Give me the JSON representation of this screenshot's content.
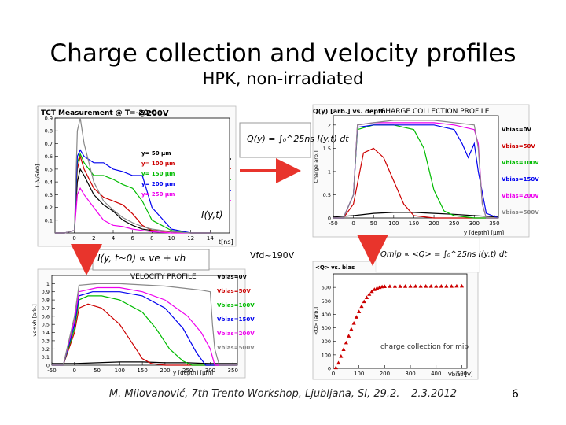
{
  "slide": {
    "title": "Charge collection and velocity profiles",
    "subtitle": "HPK, non-irradiated",
    "footer": "M. Milovanović, 7th Trento Workshop, Ljubljana, SI, 29.2. – 2.3.2012",
    "page_number": "6",
    "vfd_label": "Vfd~190V"
  },
  "colors": {
    "c0": "#000000",
    "c50": "#cc0000",
    "c100": "#00bb00",
    "c150": "#0000ee",
    "c200": "#ee00ee",
    "c250": "#888888",
    "arrow": "#e8342c"
  },
  "chart_data": [
    {
      "id": "tct",
      "type": "line",
      "title": "TCT Measurement @ T=-20 C",
      "annotation": "@200V",
      "xlabel": "t[ns]",
      "ylabel": "I [V/50Ω]",
      "xlim": [
        -2,
        16
      ],
      "ylim": [
        0,
        0.9
      ],
      "xticks": [
        0,
        2,
        4,
        6,
        8,
        10,
        12,
        14
      ],
      "yticks": [
        0.1,
        0.2,
        0.3,
        0.4,
        0.5,
        0.6,
        0.7,
        0.8,
        0.9
      ],
      "formula": "Q(y) = ∫₀^25ns I(y,t) dt",
      "formula2": "I(y,t)",
      "series": [
        {
          "name": "y= 50 μm",
          "color": "#000000",
          "x": [
            -2,
            -1,
            0,
            0.3,
            0.6,
            1,
            2,
            3,
            4,
            5,
            6,
            7,
            8,
            10,
            12,
            14
          ],
          "y": [
            0,
            0,
            0.02,
            0.4,
            0.5,
            0.45,
            0.3,
            0.22,
            0.17,
            0.1,
            0.06,
            0.03,
            0.02,
            0.01,
            0,
            0
          ]
        },
        {
          "name": "y= 100 μm",
          "color": "#cc0000",
          "x": [
            -2,
            -1,
            0,
            0.3,
            0.6,
            1,
            2,
            3,
            4,
            5,
            6,
            7,
            8,
            10,
            12,
            14
          ],
          "y": [
            0,
            0,
            0.02,
            0.5,
            0.6,
            0.5,
            0.35,
            0.28,
            0.25,
            0.22,
            0.15,
            0.06,
            0.02,
            0.01,
            0,
            0
          ]
        },
        {
          "name": "y= 150 μm",
          "color": "#00bb00",
          "x": [
            -2,
            -1,
            0,
            0.3,
            0.6,
            1,
            2,
            3,
            4,
            5,
            6,
            7,
            8,
            10,
            12,
            14
          ],
          "y": [
            0,
            0,
            0.02,
            0.55,
            0.62,
            0.55,
            0.45,
            0.45,
            0.42,
            0.38,
            0.35,
            0.25,
            0.1,
            0.02,
            0,
            0
          ]
        },
        {
          "name": "y= 200 μm",
          "color": "#0000ee",
          "x": [
            -2,
            -1,
            0,
            0.3,
            0.6,
            1,
            2,
            3,
            4,
            5,
            6,
            7,
            8,
            10,
            12,
            14
          ],
          "y": [
            0,
            0,
            0.02,
            0.6,
            0.65,
            0.6,
            0.55,
            0.55,
            0.5,
            0.48,
            0.45,
            0.45,
            0.2,
            0.03,
            0,
            0
          ]
        },
        {
          "name": "y= 250 μm",
          "color": "#ee00ee",
          "x": [
            -2,
            -1,
            0,
            0.3,
            0.6,
            1,
            2,
            3,
            4,
            5,
            6,
            7,
            8,
            10,
            12,
            14
          ],
          "y": [
            0,
            0,
            0.02,
            0.3,
            0.35,
            0.3,
            0.2,
            0.1,
            0.06,
            0.05,
            0.03,
            0.02,
            0.01,
            0,
            0,
            0
          ]
        },
        {
          "name": "",
          "color": "#888888",
          "x": [
            -2,
            -1,
            0,
            0.3,
            0.6,
            1,
            2,
            3,
            4,
            5,
            6,
            7,
            8,
            10,
            12,
            14
          ],
          "y": [
            0,
            0,
            0.02,
            0.8,
            0.9,
            0.7,
            0.4,
            0.25,
            0.18,
            0.12,
            0.08,
            0.05,
            0.03,
            0.01,
            0,
            0
          ]
        }
      ]
    },
    {
      "id": "ccp",
      "type": "line",
      "title": "Q(y) [arb.] vs. depth",
      "annotation": "CHARGE COLLECTION PROFILE",
      "xlabel": "y [depth] [μm]",
      "ylabel": "Charge[arb.]",
      "xlim": [
        -50,
        360
      ],
      "ylim": [
        0,
        2.2
      ],
      "xticks": [
        -50,
        0,
        50,
        100,
        150,
        200,
        250,
        300,
        350
      ],
      "yticks": [
        0,
        0.5,
        1,
        1.5,
        2
      ],
      "series": [
        {
          "name": "Vbias=0V",
          "color": "#000000",
          "x": [
            -50,
            0,
            50,
            100,
            150,
            200,
            250,
            300,
            360
          ],
          "y": [
            0.02,
            0.05,
            0.1,
            0.12,
            0.12,
            0.1,
            0.08,
            0.05,
            0.02
          ]
        },
        {
          "name": "Vbias=50V",
          "color": "#cc0000",
          "x": [
            -50,
            -25,
            0,
            25,
            50,
            75,
            100,
            125,
            150,
            200,
            300,
            360
          ],
          "y": [
            0,
            0,
            0.3,
            1.4,
            1.5,
            1.3,
            0.8,
            0.3,
            0.05,
            0,
            0,
            0
          ]
        },
        {
          "name": "Vbias=100V",
          "color": "#00bb00",
          "x": [
            -50,
            -25,
            0,
            10,
            50,
            100,
            150,
            175,
            200,
            225,
            250,
            300,
            360
          ],
          "y": [
            0,
            0,
            0.5,
            1.9,
            2.0,
            2.0,
            1.9,
            1.5,
            0.6,
            0.15,
            0.05,
            0,
            0
          ]
        },
        {
          "name": "Vbias=150V",
          "color": "#0000ee",
          "x": [
            -50,
            -25,
            0,
            10,
            50,
            100,
            150,
            200,
            250,
            270,
            285,
            300,
            310,
            330,
            360
          ],
          "y": [
            0,
            0,
            0.5,
            1.95,
            2.0,
            2.0,
            2.0,
            2.0,
            1.9,
            1.6,
            1.3,
            1.6,
            1.0,
            0.1,
            0
          ]
        },
        {
          "name": "Vbias=200V",
          "color": "#ee00ee",
          "x": [
            -50,
            -25,
            0,
            10,
            50,
            100,
            200,
            250,
            300,
            310,
            320,
            330,
            360
          ],
          "y": [
            0,
            0,
            0.5,
            2.0,
            2.05,
            2.05,
            2.05,
            2.0,
            1.9,
            1.6,
            0.3,
            0,
            0
          ]
        },
        {
          "name": "Vbias=500V",
          "color": "#888888",
          "x": [
            -50,
            -25,
            0,
            10,
            50,
            100,
            200,
            300,
            310,
            320,
            330,
            360
          ],
          "y": [
            0,
            0,
            0.5,
            2.0,
            2.05,
            2.1,
            2.1,
            2.0,
            1.5,
            0.3,
            0,
            0
          ]
        }
      ]
    },
    {
      "id": "vel",
      "type": "line",
      "title": "VELOCITY PROFILE",
      "xlabel": "y [depth] [μm]",
      "ylabel": "ve+vh [arb.]",
      "xlim": [
        -50,
        360
      ],
      "ylim": [
        0,
        1.1
      ],
      "xticks": [
        -50,
        0,
        50,
        100,
        150,
        200,
        250,
        300,
        350
      ],
      "yticks": [
        0,
        0.1,
        0.2,
        0.3,
        0.4,
        0.5,
        0.6,
        0.7,
        0.8,
        0.9,
        1.0
      ],
      "formula": "I(y, t~0) ∝ ve + vh",
      "series": [
        {
          "name": "Vbias=0V",
          "color": "#000000",
          "x": [
            -50,
            0,
            50,
            100,
            150,
            200,
            250,
            300,
            360
          ],
          "y": [
            0.02,
            0.02,
            0.03,
            0.04,
            0.04,
            0.03,
            0.03,
            0.02,
            0.02
          ]
        },
        {
          "name": "Vbias=50V",
          "color": "#cc0000",
          "x": [
            -50,
            -25,
            0,
            10,
            30,
            60,
            100,
            130,
            150,
            170,
            200,
            360
          ],
          "y": [
            0,
            0,
            0.4,
            0.7,
            0.75,
            0.7,
            0.5,
            0.25,
            0.08,
            0.02,
            0,
            0
          ]
        },
        {
          "name": "Vbias=100V",
          "color": "#00bb00",
          "x": [
            -50,
            -25,
            0,
            10,
            30,
            60,
            100,
            150,
            180,
            210,
            240,
            260,
            360
          ],
          "y": [
            0,
            0,
            0.45,
            0.8,
            0.85,
            0.85,
            0.8,
            0.65,
            0.45,
            0.2,
            0.05,
            0,
            0
          ]
        },
        {
          "name": "Vbias=150V",
          "color": "#0000ee",
          "x": [
            -50,
            -25,
            0,
            10,
            40,
            100,
            150,
            200,
            240,
            270,
            290,
            360
          ],
          "y": [
            0,
            0,
            0.5,
            0.85,
            0.9,
            0.9,
            0.85,
            0.7,
            0.45,
            0.15,
            0,
            0
          ]
        },
        {
          "name": "Vbias=200V",
          "color": "#ee00ee",
          "x": [
            -50,
            -25,
            0,
            10,
            50,
            100,
            150,
            200,
            250,
            280,
            300,
            310,
            360
          ],
          "y": [
            0,
            0,
            0.55,
            0.9,
            0.95,
            0.95,
            0.9,
            0.8,
            0.6,
            0.4,
            0.2,
            0,
            0
          ]
        },
        {
          "name": "Vbias=500V",
          "color": "#888888",
          "x": [
            -50,
            -25,
            0,
            10,
            50,
            100,
            200,
            280,
            300,
            305,
            310,
            320,
            360
          ],
          "y": [
            0,
            0,
            0.6,
            0.98,
            1.0,
            1.0,
            0.97,
            0.92,
            0.9,
            0.5,
            0.2,
            0,
            0
          ]
        }
      ]
    },
    {
      "id": "mip",
      "type": "scatter",
      "title": "<Q> vs. bias",
      "annotation": "charge collection for mip",
      "formula": "Qmip ∝ <Q> = ∫₀^25ns I(y,t) dt",
      "xlabel": "Vbias [V]",
      "ylabel": "<Q> [arb.]",
      "xlim": [
        0,
        520
      ],
      "ylim": [
        0,
        700
      ],
      "xticks": [
        0,
        100,
        200,
        300,
        400,
        500
      ],
      "yticks": [
        0,
        100,
        200,
        300,
        400,
        500,
        600
      ],
      "x": [
        10,
        20,
        30,
        40,
        50,
        60,
        70,
        80,
        90,
        100,
        110,
        120,
        130,
        140,
        150,
        160,
        170,
        180,
        190,
        200,
        220,
        240,
        260,
        280,
        300,
        320,
        340,
        360,
        380,
        400,
        420,
        440,
        460,
        480,
        500
      ],
      "y": [
        5,
        40,
        90,
        140,
        190,
        240,
        290,
        335,
        380,
        420,
        460,
        495,
        525,
        550,
        570,
        585,
        595,
        600,
        605,
        607,
        608,
        608,
        608,
        608,
        609,
        609,
        609,
        609,
        609,
        609,
        609,
        609,
        609,
        610,
        610
      ]
    }
  ]
}
